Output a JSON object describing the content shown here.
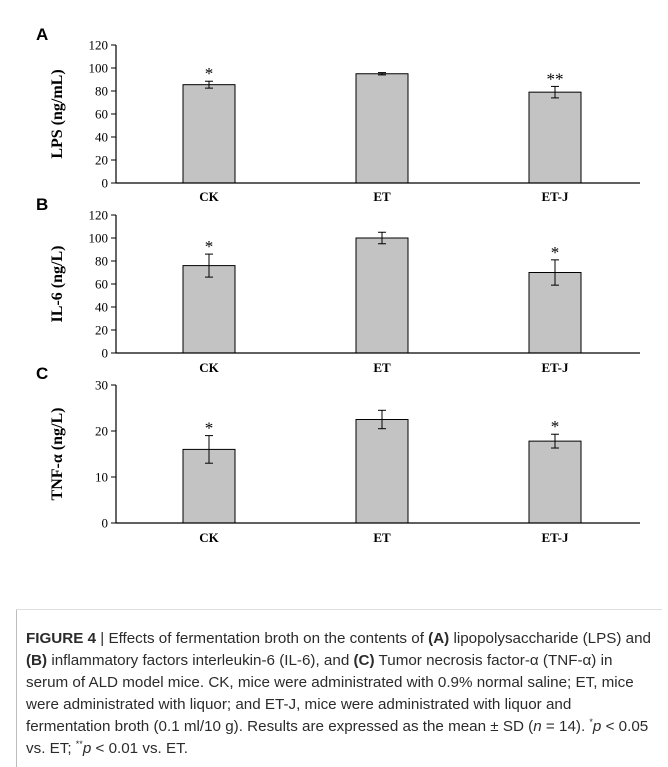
{
  "chart_data": [
    {
      "panel_letter": "A",
      "type": "bar",
      "categories": [
        "CK",
        "ET",
        "ET-J"
      ],
      "values": [
        85.5,
        95,
        79
      ],
      "errors": [
        3,
        1,
        5
      ],
      "significance": [
        "*",
        "",
        "**"
      ],
      "ylabel": "LPS (ng/mL)",
      "ylim": [
        0,
        120
      ],
      "yticks": [
        "0",
        "20",
        "40",
        "60",
        "80",
        "100",
        "120"
      ],
      "bar_color": "#c3c3c3"
    },
    {
      "panel_letter": "B",
      "type": "bar",
      "categories": [
        "CK",
        "ET",
        "ET-J"
      ],
      "values": [
        76,
        100,
        70
      ],
      "errors": [
        10,
        5,
        11
      ],
      "significance": [
        "*",
        "",
        "*"
      ],
      "ylabel": "IL-6 (ng/L)",
      "ylim": [
        0,
        120
      ],
      "yticks": [
        "0",
        "20",
        "40",
        "60",
        "80",
        "100",
        "120"
      ],
      "bar_color": "#c3c3c3"
    },
    {
      "panel_letter": "C",
      "type": "bar",
      "categories": [
        "CK",
        "ET",
        "ET-J"
      ],
      "values": [
        16,
        22.5,
        17.8
      ],
      "errors": [
        3,
        2,
        1.5
      ],
      "significance": [
        "*",
        "",
        "*"
      ],
      "ylabel": "TNF-α (ng/L)",
      "ylim": [
        0,
        30
      ],
      "yticks": [
        "0",
        "10",
        "20",
        "30"
      ],
      "bar_color": "#c3c3c3"
    }
  ],
  "caption": {
    "figure_label": "FIGURE 4",
    "separator": " | ",
    "t1": "Effects of fermentation broth on the contents of ",
    "a_label": "(A)",
    "t2": " lipopolysaccharide (LPS) and ",
    "b_label": "(B)",
    "t3": " inflammatory factors interleukin-6 (IL-6), and ",
    "c_label": "(C)",
    "t4": " Tumor necrosis factor-α (TNF-α) in serum of ALD model mice. CK, mice were administrated with 0.9% normal saline; ET, mice were administrated with liquor; and ET-J, mice were administrated with liquor and fermentation broth (0.1 ml/10 g). Results are expressed as the mean ± SD (",
    "n_var": "n",
    "t5": " = 14). ",
    "sup1": "*",
    "p1": "p",
    "t6": " < 0.05 vs. ET; ",
    "sup2": "**",
    "p2": "p",
    "t7": " < 0.01 vs. ET."
  }
}
